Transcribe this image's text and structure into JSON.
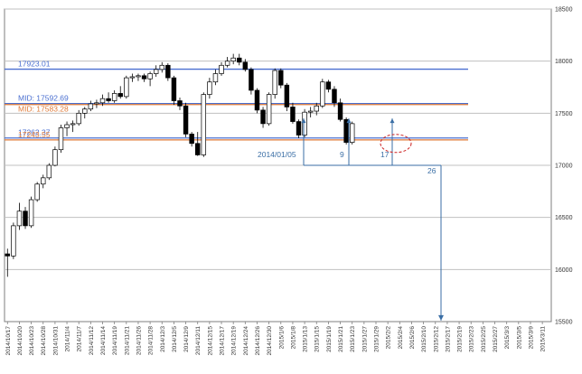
{
  "chart_data": {
    "type": "candlestick",
    "ylim": [
      15500,
      18500
    ],
    "yticks": [
      15500,
      16000,
      16500,
      17000,
      17500,
      18000,
      18500
    ],
    "ytick_labels": [
      "15500",
      "16000",
      "16500",
      "17000",
      "17500",
      "18000",
      "18500"
    ],
    "grid": "horizontal",
    "x_labels": [
      "2014/10/17",
      "2014/10/20",
      "2014/10/23",
      "2014/10/28",
      "2014/10/31",
      "2014/11/4",
      "2014/11/7",
      "2014/11/12",
      "2014/11/14",
      "2014/11/19",
      "2014/11/21",
      "2014/11/26",
      "2014/11/28",
      "2014/12/3",
      "2014/12/5",
      "2014/12/9",
      "2014/12/11",
      "2014/12/15",
      "2014/12/17",
      "2014/12/19",
      "2014/12/24",
      "2014/12/26",
      "2014/12/30",
      "2015/1/6",
      "2015/1/8",
      "2015/1/13",
      "2015/1/15",
      "2015/1/19",
      "2015/1/21",
      "2015/1/23",
      "2015/1/27",
      "2015/1/29",
      "2015/2/2",
      "2015/2/4",
      "2015/2/6",
      "2015/2/10",
      "2015/2/12",
      "2015/2/17",
      "2015/2/19",
      "2015/2/23",
      "2015/2/25",
      "2015/2/27",
      "2015/3/3",
      "2015/3/5",
      "2015/3/9",
      "2015/3/11"
    ],
    "candles": [
      {
        "o": 16150,
        "h": 16200,
        "l": 15930,
        "c": 16130
      },
      {
        "o": 16130,
        "h": 16450,
        "l": 16100,
        "c": 16420
      },
      {
        "o": 16420,
        "h": 16640,
        "l": 16380,
        "c": 16560
      },
      {
        "o": 16560,
        "h": 16600,
        "l": 16390,
        "c": 16420
      },
      {
        "o": 16420,
        "h": 16700,
        "l": 16400,
        "c": 16670
      },
      {
        "o": 16670,
        "h": 16840,
        "l": 16650,
        "c": 16820
      },
      {
        "o": 16820,
        "h": 16910,
        "l": 16780,
        "c": 16880
      },
      {
        "o": 16880,
        "h": 17020,
        "l": 16860,
        "c": 17000
      },
      {
        "o": 17000,
        "h": 17180,
        "l": 16990,
        "c": 17150
      },
      {
        "o": 17150,
        "h": 17390,
        "l": 17120,
        "c": 17360
      },
      {
        "o": 17360,
        "h": 17420,
        "l": 17280,
        "c": 17390
      },
      {
        "o": 17390,
        "h": 17430,
        "l": 17320,
        "c": 17400
      },
      {
        "o": 17400,
        "h": 17530,
        "l": 17380,
        "c": 17500
      },
      {
        "o": 17500,
        "h": 17560,
        "l": 17450,
        "c": 17540
      },
      {
        "o": 17540,
        "h": 17620,
        "l": 17520,
        "c": 17590
      },
      {
        "o": 17590,
        "h": 17630,
        "l": 17550,
        "c": 17600
      },
      {
        "o": 17600,
        "h": 17680,
        "l": 17570,
        "c": 17640
      },
      {
        "o": 17640,
        "h": 17700,
        "l": 17600,
        "c": 17620
      },
      {
        "o": 17620,
        "h": 17720,
        "l": 17600,
        "c": 17690
      },
      {
        "o": 17690,
        "h": 17760,
        "l": 17640,
        "c": 17660
      },
      {
        "o": 17660,
        "h": 17860,
        "l": 17640,
        "c": 17840
      },
      {
        "o": 17840,
        "h": 17880,
        "l": 17800,
        "c": 17850
      },
      {
        "o": 17850,
        "h": 17880,
        "l": 17810,
        "c": 17860
      },
      {
        "o": 17860,
        "h": 17880,
        "l": 17800,
        "c": 17830
      },
      {
        "o": 17830,
        "h": 17900,
        "l": 17760,
        "c": 17880
      },
      {
        "o": 17880,
        "h": 17960,
        "l": 17850,
        "c": 17920
      },
      {
        "o": 17920,
        "h": 17990,
        "l": 17890,
        "c": 17960
      },
      {
        "o": 17960,
        "h": 17980,
        "l": 17810,
        "c": 17840
      },
      {
        "o": 17840,
        "h": 17860,
        "l": 17580,
        "c": 17620
      },
      {
        "o": 17620,
        "h": 17650,
        "l": 17530,
        "c": 17570
      },
      {
        "o": 17570,
        "h": 17600,
        "l": 17270,
        "c": 17300
      },
      {
        "o": 17300,
        "h": 17320,
        "l": 17180,
        "c": 17210
      },
      {
        "o": 17210,
        "h": 17320,
        "l": 17090,
        "c": 17100
      },
      {
        "o": 17100,
        "h": 17700,
        "l": 17080,
        "c": 17680
      },
      {
        "o": 17680,
        "h": 17840,
        "l": 17640,
        "c": 17800
      },
      {
        "o": 17800,
        "h": 17920,
        "l": 17770,
        "c": 17880
      },
      {
        "o": 17880,
        "h": 17990,
        "l": 17860,
        "c": 17960
      },
      {
        "o": 17960,
        "h": 18040,
        "l": 17940,
        "c": 18000
      },
      {
        "o": 18000,
        "h": 18070,
        "l": 17970,
        "c": 18030
      },
      {
        "o": 18030,
        "h": 18070,
        "l": 17960,
        "c": 17990
      },
      {
        "o": 17990,
        "h": 18020,
        "l": 17900,
        "c": 17920
      },
      {
        "o": 17920,
        "h": 17940,
        "l": 17680,
        "c": 17720
      },
      {
        "o": 17720,
        "h": 17740,
        "l": 17500,
        "c": 17530
      },
      {
        "o": 17530,
        "h": 17560,
        "l": 17360,
        "c": 17400
      },
      {
        "o": 17400,
        "h": 17700,
        "l": 17380,
        "c": 17680
      },
      {
        "o": 17680,
        "h": 17930,
        "l": 17640,
        "c": 17910
      },
      {
        "o": 17910,
        "h": 17930,
        "l": 17740,
        "c": 17770
      },
      {
        "o": 17770,
        "h": 17790,
        "l": 17520,
        "c": 17560
      },
      {
        "o": 17560,
        "h": 17600,
        "l": 17400,
        "c": 17420
      },
      {
        "o": 17420,
        "h": 17440,
        "l": 17260,
        "c": 17290
      },
      {
        "o": 17290,
        "h": 17540,
        "l": 17270,
        "c": 17510
      },
      {
        "o": 17510,
        "h": 17560,
        "l": 17460,
        "c": 17520
      },
      {
        "o": 17520,
        "h": 17600,
        "l": 17480,
        "c": 17570
      },
      {
        "o": 17570,
        "h": 17830,
        "l": 17550,
        "c": 17800
      },
      {
        "o": 17800,
        "h": 17820,
        "l": 17700,
        "c": 17730
      },
      {
        "o": 17730,
        "h": 17760,
        "l": 17560,
        "c": 17600
      },
      {
        "o": 17600,
        "h": 17640,
        "l": 17420,
        "c": 17440
      },
      {
        "o": 17440,
        "h": 17460,
        "l": 17200,
        "c": 17220
      },
      {
        "o": 17220,
        "h": 17420,
        "l": 17200,
        "c": 17400
      }
    ],
    "levels": [
      {
        "value": 17923.01,
        "label": "17923.01",
        "color": "#4a6fd0"
      },
      {
        "value": 17592.69,
        "label": "MID: 17592.69",
        "color": "#4a6fd0"
      },
      {
        "value": 17583.28,
        "label": "MID: 17583.28",
        "color": "#e07b39"
      },
      {
        "value": 17262.37,
        "label": "17262.37",
        "color": "#4a6fd0"
      },
      {
        "value": 17243.55,
        "label": "17243.55",
        "color": "#e07b39"
      }
    ],
    "annotations": [
      {
        "text": "2014/01/05"
      },
      {
        "text": "9"
      },
      {
        "text": "17"
      },
      {
        "text": "26"
      }
    ],
    "colors": {
      "up_fill": "#ffffff",
      "down_fill": "#000000",
      "candle_stroke": "#000000",
      "grid": "#c0c0c0",
      "annotation": "#3a6ea5",
      "highlight": "#cc2222"
    }
  }
}
